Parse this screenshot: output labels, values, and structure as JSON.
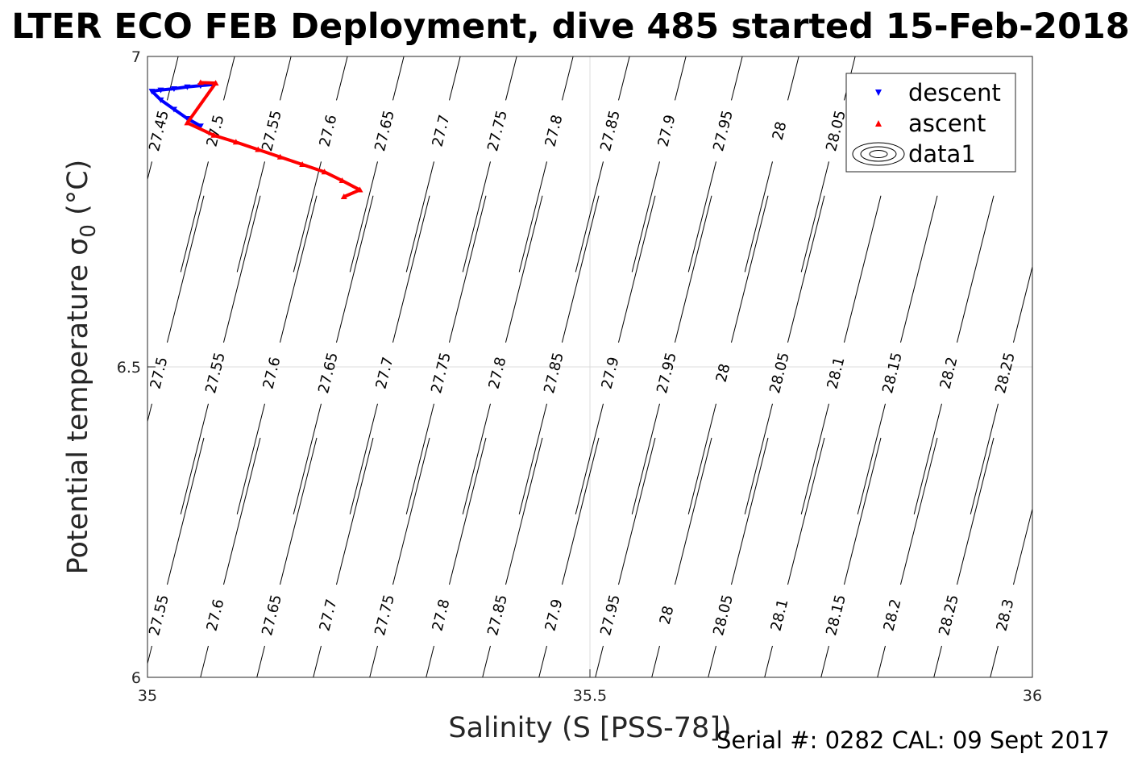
{
  "chart_data": {
    "type": "scatter",
    "title": "LTER ECO FEB Deployment, dive 485 started 15-Feb-2018",
    "xlabel": "Salinity (S [PSS-78])",
    "ylabel": "Potential temperature σ",
    "ylabel_subscript": "0",
    "ylabel_unit": " (°C)",
    "xlim": [
      35,
      36
    ],
    "ylim": [
      6,
      7
    ],
    "xticks": [
      "35",
      "35.5",
      "36"
    ],
    "yticks": [
      "6",
      "6.5",
      "7"
    ],
    "grid": true,
    "legend_position": "top-right",
    "legend": [
      "descent",
      "ascent",
      "data1"
    ],
    "series": [
      {
        "name": "descent",
        "color": "#0000ff",
        "marker": "triangle-down",
        "points": [
          [
            35.075,
            6.955
          ],
          [
            35.06,
            6.953
          ],
          [
            35.045,
            6.951
          ],
          [
            35.03,
            6.948
          ],
          [
            35.015,
            6.946
          ],
          [
            35.005,
            6.944
          ],
          [
            35.015,
            6.93
          ],
          [
            35.03,
            6.915
          ],
          [
            35.045,
            6.9
          ],
          [
            35.06,
            6.888
          ]
        ]
      },
      {
        "name": "ascent",
        "color": "#ff0000",
        "marker": "triangle-up",
        "points": [
          [
            35.06,
            6.958
          ],
          [
            35.077,
            6.957
          ],
          [
            35.045,
            6.893
          ],
          [
            35.075,
            6.873
          ],
          [
            35.1,
            6.862
          ],
          [
            35.125,
            6.85
          ],
          [
            35.15,
            6.838
          ],
          [
            35.175,
            6.826
          ],
          [
            35.2,
            6.814
          ],
          [
            35.22,
            6.8
          ],
          [
            35.24,
            6.785
          ],
          [
            35.222,
            6.774
          ]
        ]
      }
    ],
    "contour_rows": [
      {
        "y": 6.88,
        "labels": [
          "27.45",
          "27.5",
          "27.55",
          "27.6",
          "27.65",
          "27.7",
          "27.75",
          "27.8",
          "27.85",
          "27.9",
          "27.95",
          "28",
          "28.05"
        ]
      },
      {
        "y": 6.49,
        "labels": [
          "27.5",
          "27.55",
          "27.6",
          "27.65",
          "27.7",
          "27.75",
          "27.8",
          "27.85",
          "27.9",
          "27.95",
          "28",
          "28.05",
          "28.1",
          "28.15",
          "28.2",
          "28.25"
        ]
      },
      {
        "y": 6.1,
        "labels": [
          "27.55",
          "27.6",
          "27.65",
          "27.7",
          "27.75",
          "27.8",
          "27.85",
          "27.9",
          "27.95",
          "28",
          "28.05",
          "28.1",
          "28.15",
          "28.2",
          "28.25",
          "28.3"
        ]
      }
    ]
  },
  "footer": "Serial #: 0282  CAL: 09 Sept 2017"
}
